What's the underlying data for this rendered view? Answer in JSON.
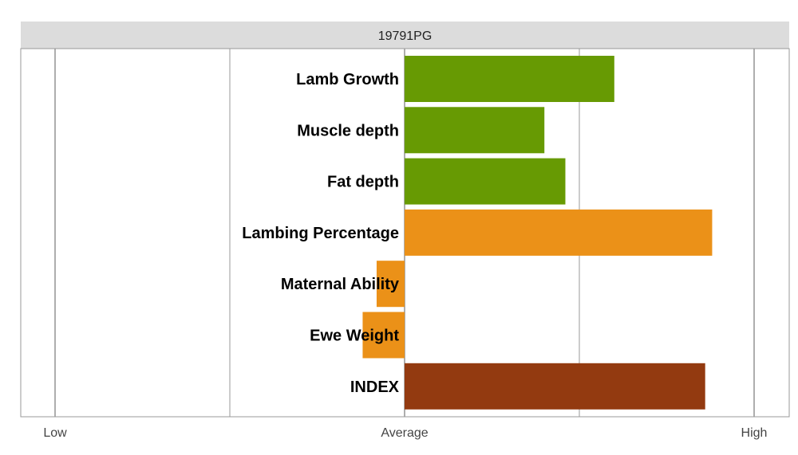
{
  "chart_data": {
    "type": "bar",
    "orientation": "horizontal",
    "title": "19791PG",
    "xlabel": "",
    "ylabel": "",
    "xlim": [
      -1,
      1
    ],
    "x_ticks": [
      {
        "value": -1,
        "label": "Low"
      },
      {
        "value": 0,
        "label": "Average"
      },
      {
        "value": 1,
        "label": "High"
      }
    ],
    "grid": true,
    "legend": "none",
    "categories": [
      "Lamb Growth",
      "Muscle depth",
      "Fat depth",
      "Lambing Percentage",
      "Maternal Ability",
      "Ewe Weight",
      "INDEX"
    ],
    "values": [
      0.6,
      0.4,
      0.46,
      0.88,
      -0.08,
      -0.12,
      0.86
    ],
    "colors": [
      "#679a03",
      "#679a03",
      "#679a03",
      "#eb9118",
      "#eb9118",
      "#eb9118",
      "#933a10"
    ]
  },
  "style": {
    "title_bar_color": "#dcdcdc",
    "border_color": "#9a9a9a",
    "grid_color": "#9a9a9a"
  }
}
